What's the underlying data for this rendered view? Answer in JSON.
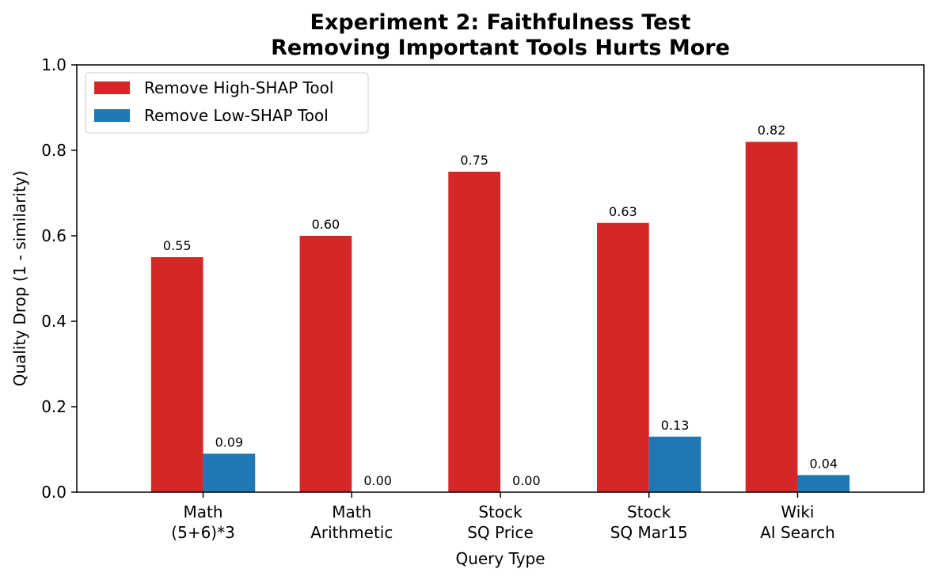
{
  "chart_data": {
    "type": "bar",
    "title_lines": [
      "Experiment 2: Faithfulness Test",
      "Removing Important Tools Hurts More"
    ],
    "xlabel": "Query Type",
    "ylabel": "Quality Drop (1 - similarity)",
    "ylim": [
      0,
      1.0
    ],
    "yticks": [
      "0.0",
      "0.2",
      "0.4",
      "0.6",
      "0.8",
      "1.0"
    ],
    "categories": [
      [
        "Math",
        "(5+6)*3"
      ],
      [
        "Math",
        "Arithmetic"
      ],
      [
        "Stock",
        "SQ Price"
      ],
      [
        "Stock",
        "SQ Mar15"
      ],
      [
        "Wiki",
        "AI Search"
      ]
    ],
    "series": [
      {
        "name": "Remove High-SHAP Tool",
        "color": "#d62728",
        "values": [
          0.55,
          0.6,
          0.75,
          0.63,
          0.82
        ],
        "labels": [
          "0.55",
          "0.60",
          "0.75",
          "0.63",
          "0.82"
        ]
      },
      {
        "name": "Remove Low-SHAP Tool",
        "color": "#1f77b4",
        "values": [
          0.09,
          0.0,
          0.0,
          0.13,
          0.04
        ],
        "labels": [
          "0.09",
          "0.00",
          "0.00",
          "0.13",
          "0.04"
        ]
      }
    ],
    "legend_position": "top-left",
    "grid": false
  }
}
